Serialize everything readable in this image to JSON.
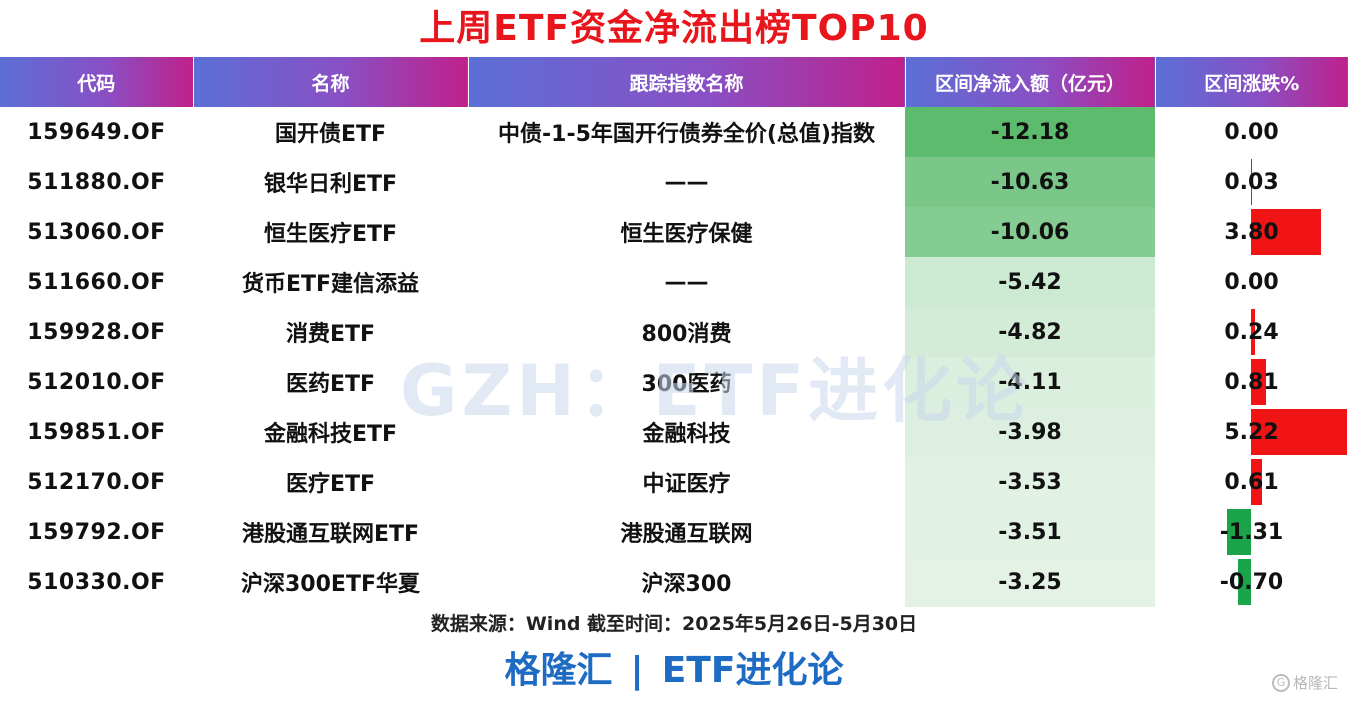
{
  "title": "上周ETF资金净流出榜TOP10",
  "headers": [
    "代码",
    "名称",
    "跟踪指数名称",
    "区间净流入额（亿元）",
    "区间涨跌%"
  ],
  "rows": [
    {
      "code": "159649.OF",
      "name": "国开债ETF",
      "index": "中债-1-5年国开行债券全价(总值)指数",
      "flow": "-12.18",
      "change": "0.00"
    },
    {
      "code": "511880.OF",
      "name": "银华日利ETF",
      "index": "——",
      "flow": "-10.63",
      "change": "0.03"
    },
    {
      "code": "513060.OF",
      "name": "恒生医疗ETF",
      "index": "恒生医疗保健",
      "flow": "-10.06",
      "change": "3.80"
    },
    {
      "code": "511660.OF",
      "name": "货币ETF建信添益",
      "index": "——",
      "flow": "-5.42",
      "change": "0.00"
    },
    {
      "code": "159928.OF",
      "name": "消费ETF",
      "index": "800消费",
      "flow": "-4.82",
      "change": "0.24"
    },
    {
      "code": "512010.OF",
      "name": "医药ETF",
      "index": "300医药",
      "flow": "-4.11",
      "change": "0.81"
    },
    {
      "code": "159851.OF",
      "name": "金融科技ETF",
      "index": "金融科技",
      "flow": "-3.98",
      "change": "5.22"
    },
    {
      "code": "512170.OF",
      "name": "医疗ETF",
      "index": "中证医疗",
      "flow": "-3.53",
      "change": "0.61"
    },
    {
      "code": "159792.OF",
      "name": "港股通互联网ETF",
      "index": "港股通互联网",
      "flow": "-3.51",
      "change": "-1.31"
    },
    {
      "code": "510330.OF",
      "name": "沪深300ETF华夏",
      "index": "沪深300",
      "flow": "-3.25",
      "change": "-0.70"
    }
  ],
  "colors": {
    "title": "#e8151c",
    "positive_bar": "#f01414",
    "negative_bar": "#1aa54b",
    "flow_scale_strong": "#5dbb6e",
    "brand": "#1d6bc3"
  },
  "watermark": "GZH：ETF进化论",
  "source_note": "数据来源：Wind 截至时间：2025年5月26日-5月30日",
  "brand": {
    "left": "格隆汇",
    "separator": "|",
    "right": "ETF进化论"
  },
  "corner_logo": {
    "icon": "gelonghui-logo-icon",
    "text": "格隆汇"
  }
}
